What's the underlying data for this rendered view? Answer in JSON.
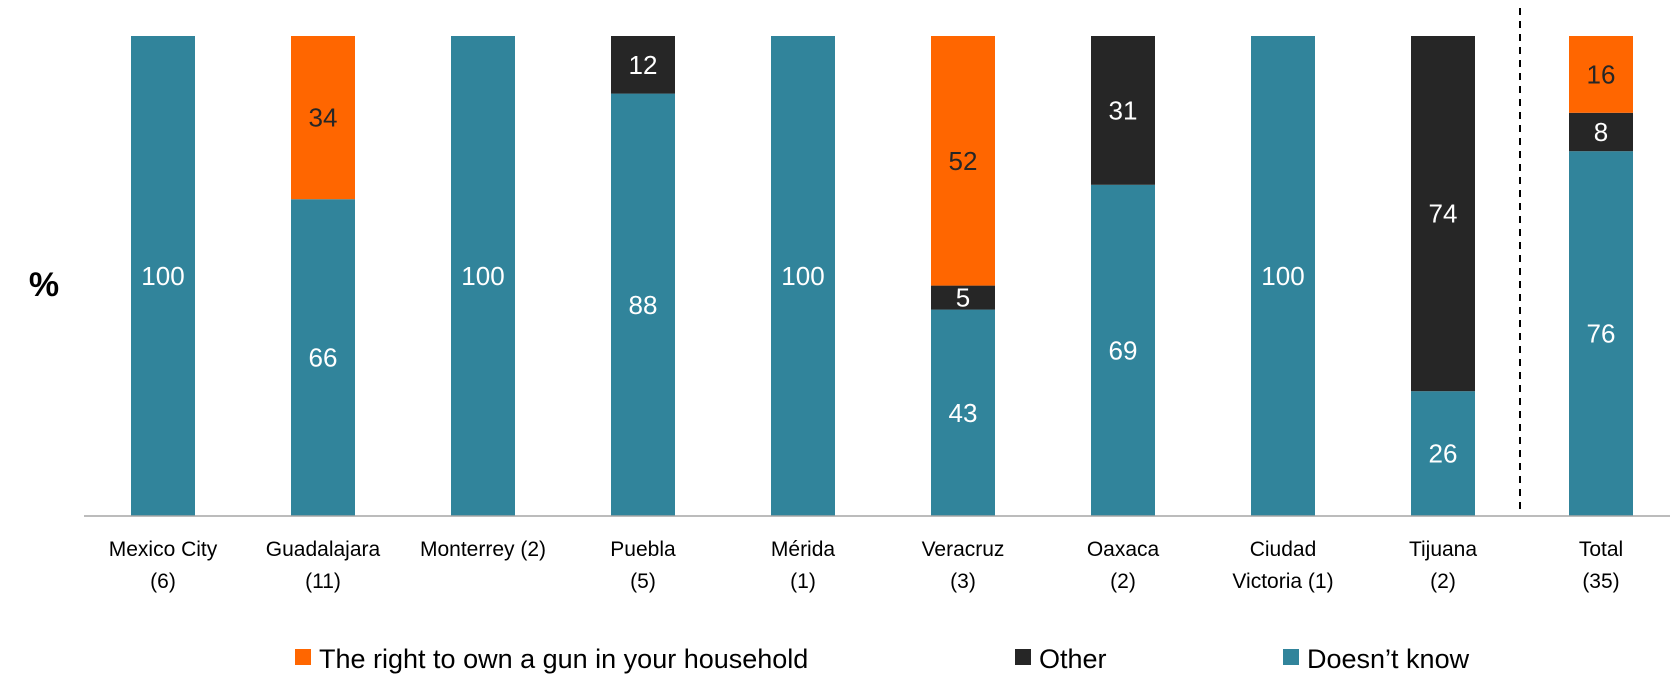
{
  "chart_data": {
    "type": "bar",
    "stacked": true,
    "normalized": true,
    "ylabel": "%",
    "ylim": [
      0,
      100
    ],
    "grid": false,
    "legend_position": "bottom",
    "categories": [
      [
        "Mexico City",
        "(6)"
      ],
      [
        "Guadalajara",
        "(11)"
      ],
      [
        "Monterrey (2)"
      ],
      [
        "Puebla",
        "(5)"
      ],
      [
        "Mérida",
        "(1)"
      ],
      [
        "Veracruz",
        "(3)"
      ],
      [
        "Oaxaca",
        "(2)"
      ],
      [
        "Ciudad",
        "Victoria (1)"
      ],
      [
        "Tijuana",
        "(2)"
      ],
      [
        "Total",
        "(35)"
      ]
    ],
    "series": [
      {
        "name": "Doesn’t know",
        "color": "#31849B",
        "label_color": "#ffffff",
        "values": [
          100,
          66,
          100,
          88,
          100,
          43,
          69,
          100,
          26,
          76
        ]
      },
      {
        "name": "Other",
        "color": "#262626",
        "label_color": "#ffffff",
        "values": [
          0,
          0,
          0,
          12,
          0,
          5,
          31,
          0,
          74,
          8
        ]
      },
      {
        "name": "The right to own a gun in your household",
        "color": "#FF6600",
        "label_color": "#262626",
        "values": [
          0,
          34,
          0,
          0,
          0,
          52,
          0,
          0,
          0,
          16
        ]
      }
    ],
    "legend_order": [
      2,
      1,
      0
    ],
    "separator_before_category": 9
  }
}
